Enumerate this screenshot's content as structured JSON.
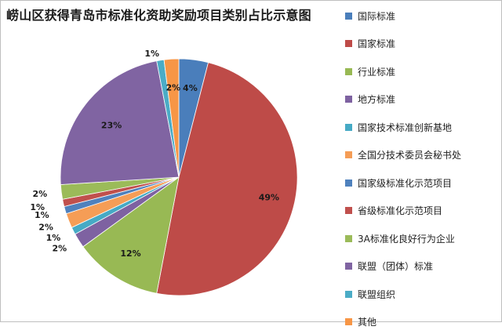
{
  "chart_data": {
    "type": "pie",
    "title": "崂山区获得青岛市标准化资助奖励项目类别占比示意图",
    "categories": [
      "国际标准",
      "国家标准",
      "行业标准",
      "地方标准",
      "国家技术标准创新基地",
      "全国分技术委员会秘书处",
      "国家级标准化示范项目",
      "省级标准化示范项目",
      "3A标准化良好行为企业",
      "联盟（团体）标准",
      "联盟组织",
      "其他"
    ],
    "values": [
      4,
      49,
      12,
      2,
      1,
      2,
      1,
      1,
      2,
      23,
      1,
      2
    ],
    "labels": [
      "4%",
      "49%",
      "12%",
      "2%",
      "1%",
      "2%",
      "1%",
      "1%",
      "2%",
      "23%",
      "1%",
      "2%"
    ],
    "colors": [
      "#4a7ebb",
      "#be4b48",
      "#98b954",
      "#7e62a1",
      "#46aac5",
      "#f59d56",
      "#4f81bd",
      "#c0504d",
      "#9bbb59",
      "#8064a2",
      "#4bacc6",
      "#f79646"
    ],
    "legend_position": "right"
  }
}
